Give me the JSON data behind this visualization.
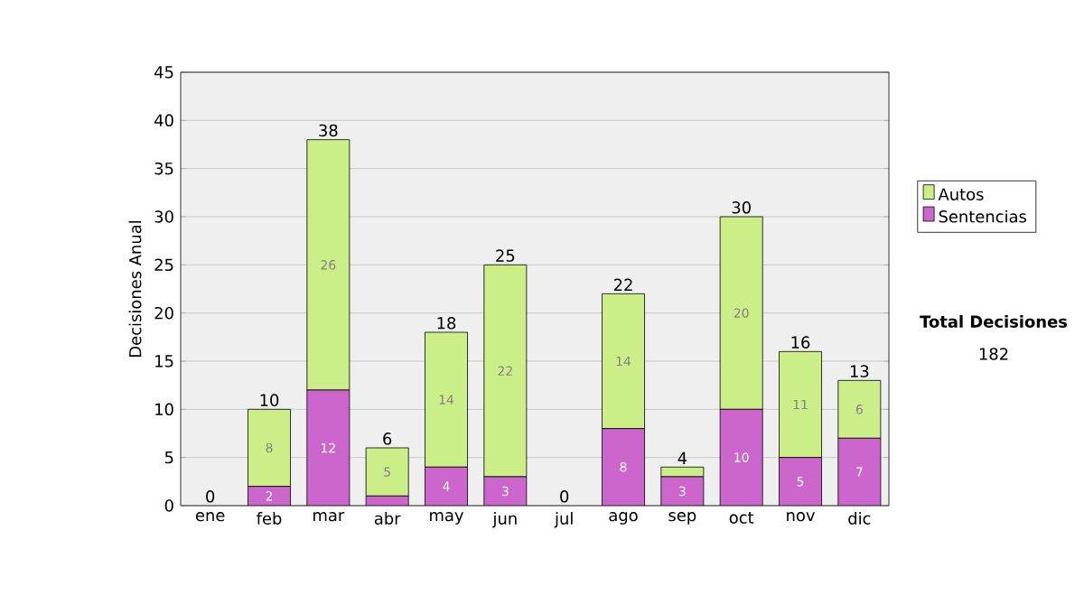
{
  "chart_data": {
    "type": "bar",
    "stacked": true,
    "ylabel": "Decisiones Anual",
    "categories": [
      "ene",
      "feb",
      "mar",
      "abr",
      "may",
      "jun",
      "jul",
      "ago",
      "sep",
      "oct",
      "nov",
      "dic"
    ],
    "series": [
      {
        "name": "Sentencias",
        "color": "#cc66cc",
        "values": [
          0,
          2,
          12,
          1,
          4,
          3,
          0,
          8,
          3,
          10,
          5,
          7
        ],
        "value_labels": [
          null,
          "2",
          "12",
          null,
          "4",
          "3",
          null,
          "8",
          "3",
          "10",
          "5",
          "7"
        ]
      },
      {
        "name": "Autos",
        "color": "#ccee88",
        "values": [
          0,
          8,
          26,
          5,
          14,
          22,
          0,
          14,
          1,
          20,
          11,
          6
        ],
        "value_labels": [
          null,
          "8",
          "26",
          "5",
          "14",
          "22",
          null,
          "14",
          null,
          "20",
          "11",
          "6"
        ]
      }
    ],
    "totals": [
      "0",
      "10",
      "38",
      "6",
      "18",
      "25",
      "0",
      "22",
      "4",
      "30",
      "16",
      "13"
    ],
    "ylim": [
      0,
      45
    ],
    "yticks": [
      0,
      5,
      10,
      15,
      20,
      25,
      30,
      35,
      40,
      45
    ],
    "grid": "y",
    "legend": "right",
    "annotations": [
      "Total Decisiones",
      "182"
    ]
  }
}
